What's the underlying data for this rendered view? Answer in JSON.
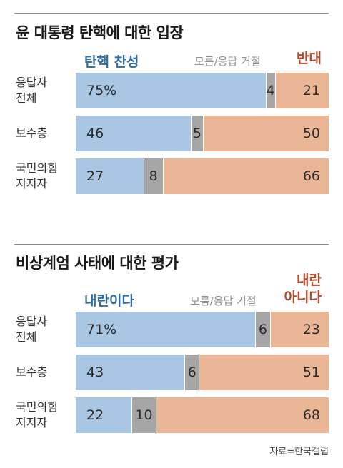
{
  "source": "자료=한국갤럽",
  "chart_data": [
    {
      "type": "bar",
      "stacked": true,
      "orientation": "horizontal",
      "title": "윤 대통령 탄핵에 대한 입장",
      "legend": [
        "탄핵 찬성",
        "모름/응답 거절",
        "반대"
      ],
      "categories": [
        "응답자 전체",
        "보수층",
        "국민의힘 지지자"
      ],
      "category_lines": [
        [
          "응답자",
          "전체"
        ],
        [
          "보수층"
        ],
        [
          "국민의힘",
          "지지자"
        ]
      ],
      "series": [
        {
          "name": "탄핵 찬성",
          "values": [
            75,
            46,
            27
          ],
          "labels": [
            "75%",
            "46",
            "27"
          ],
          "color": "#a9c6e2"
        },
        {
          "name": "모름/응답 거절",
          "values": [
            4,
            5,
            8
          ],
          "labels": [
            "4",
            "5",
            "8"
          ],
          "color": "#a6a6a6"
        },
        {
          "name": "반대",
          "values": [
            21,
            50,
            66
          ],
          "labels": [
            "21",
            "50",
            "66"
          ],
          "color": "#ebb695"
        }
      ]
    },
    {
      "type": "bar",
      "stacked": true,
      "orientation": "horizontal",
      "title": "비상계엄 사태에 대한 평가",
      "legend": [
        "내란이다",
        "모름/응답 거절",
        "내란 아니다"
      ],
      "legend_lines_con": [
        "내란",
        "아니다"
      ],
      "categories": [
        "응답자 전체",
        "보수층",
        "국민의힘 지지자"
      ],
      "category_lines": [
        [
          "응답자",
          "전체"
        ],
        [
          "보수층"
        ],
        [
          "국민의힘",
          "지지자"
        ]
      ],
      "series": [
        {
          "name": "내란이다",
          "values": [
            71,
            43,
            22
          ],
          "labels": [
            "71%",
            "43",
            "22"
          ],
          "color": "#a9c6e2"
        },
        {
          "name": "모름/응답 거절",
          "values": [
            6,
            6,
            10
          ],
          "labels": [
            "6",
            "6",
            "10"
          ],
          "color": "#a6a6a6"
        },
        {
          "name": "내란 아니다",
          "values": [
            23,
            51,
            68
          ],
          "labels": [
            "23",
            "51",
            "68"
          ],
          "color": "#ebb695"
        }
      ]
    }
  ]
}
